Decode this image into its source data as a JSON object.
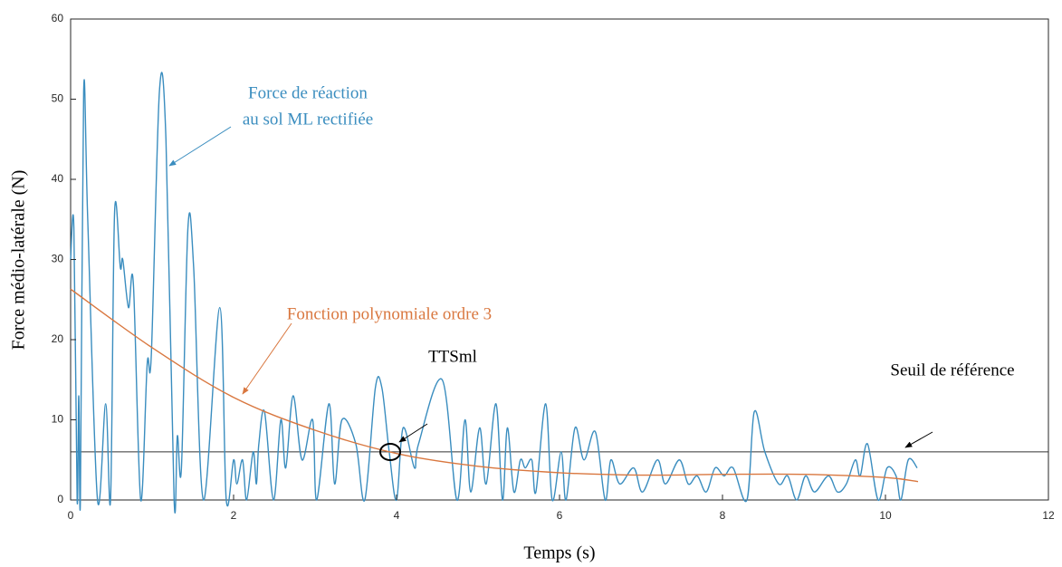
{
  "chart_data": {
    "type": "line",
    "xlabel": "Temps (s)",
    "ylabel": "Force médio-latérale (N)",
    "xlim": [
      0,
      12
    ],
    "xticks": [
      0,
      2,
      4,
      6,
      8,
      10,
      12
    ],
    "ylim": [
      0,
      60
    ],
    "yticks": [
      0,
      10,
      20,
      30,
      40,
      50,
      60
    ],
    "threshold": 6,
    "threshold_color": "#333333",
    "series": [
      {
        "color": "#3a8dbf",
        "x": [
          0,
          0.04,
          0.08,
          0.1,
          0.12,
          0.16,
          0.21,
          0.33,
          0.43,
          0.49,
          0.54,
          0.61,
          0.64,
          0.71,
          0.77,
          0.86,
          0.94,
          0.99,
          1.09,
          1.17,
          1.27,
          1.31,
          1.36,
          1.44,
          1.51,
          1.63,
          1.83,
          1.91,
          2.0,
          2.04,
          2.11,
          2.16,
          2.24,
          2.28,
          2.31,
          2.38,
          2.49,
          2.58,
          2.64,
          2.73,
          2.84,
          2.97,
          3.02,
          3.17,
          3.24,
          3.33,
          3.5,
          3.61,
          3.74,
          3.82,
          3.91,
          4.0,
          4.08,
          4.22,
          4.27,
          4.56,
          4.74,
          4.84,
          4.91,
          5.02,
          5.1,
          5.22,
          5.3,
          5.36,
          5.44,
          5.52,
          5.58,
          5.66,
          5.71,
          5.83,
          5.91,
          6.02,
          6.08,
          6.19,
          6.3,
          6.44,
          6.56,
          6.63,
          6.74,
          6.91,
          7.02,
          7.2,
          7.3,
          7.47,
          7.58,
          7.69,
          7.8,
          7.91,
          8.02,
          8.13,
          8.3,
          8.39,
          8.52,
          8.69,
          8.8,
          8.91,
          9.02,
          9.13,
          9.3,
          9.41,
          9.52,
          9.63,
          9.69,
          9.78,
          9.91,
          10.02,
          10.13,
          10.19,
          10.28,
          10.39
        ],
        "values": [
          30,
          34,
          0,
          13,
          0,
          51,
          35,
          0,
          12,
          0,
          36,
          29,
          30,
          24,
          27,
          0,
          17,
          18,
          51,
          45,
          0,
          8,
          4,
          34,
          29,
          0,
          24,
          0,
          5,
          2,
          5,
          0,
          6,
          2,
          7,
          11,
          0,
          10,
          4,
          13,
          5,
          10,
          0,
          12,
          2,
          10,
          7,
          0,
          14,
          14,
          6,
          0,
          9,
          4,
          7,
          15,
          0,
          10,
          1,
          9,
          2,
          12,
          0,
          9,
          1,
          5,
          4,
          5,
          1,
          12,
          0,
          6,
          0,
          9,
          5,
          8.5,
          0,
          5,
          2,
          4,
          1,
          5,
          2,
          5,
          2,
          3,
          1,
          4,
          3,
          4,
          0,
          11,
          6,
          2,
          3,
          0,
          3,
          1,
          3,
          1,
          2,
          5,
          3,
          7,
          0,
          4,
          3,
          0,
          5,
          4
        ]
      },
      {
        "color": "#d9773f",
        "x": [
          0,
          1,
          2,
          3,
          4,
          5,
          6,
          7,
          8,
          9,
          10,
          10.4
        ],
        "values": [
          26.3,
          19,
          12.8,
          8.7,
          5.8,
          4.2,
          3.4,
          3.1,
          3.2,
          3.2,
          2.8,
          2.3
        ]
      }
    ],
    "annotations": [
      "Force de réaction",
      "au sol ML rectifiée",
      "Fonction polynomiale ordre 3",
      "TTSml",
      "Seuil de référence"
    ]
  }
}
